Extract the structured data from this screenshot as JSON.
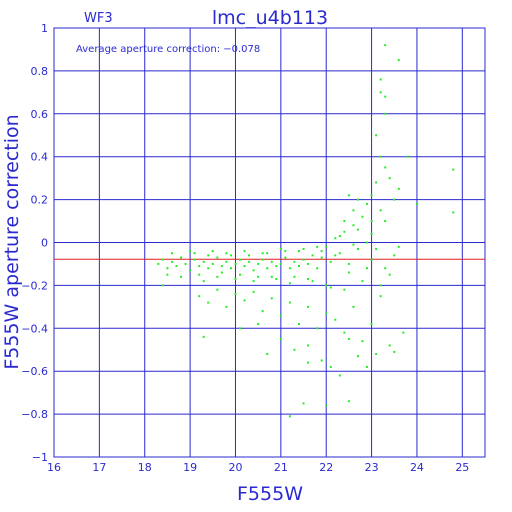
{
  "chart_data": {
    "type": "scatter",
    "title": "lmc_u4b113",
    "subtitle": "WF3",
    "xlabel": "F555W",
    "ylabel": "F555W aperture correction",
    "annotation": "Average aperture correction: −0.078",
    "xlim": [
      16,
      25.5
    ],
    "ylim": [
      -1,
      1
    ],
    "x_ticks": [
      "16",
      "17",
      "18",
      "19",
      "20",
      "21",
      "22",
      "23",
      "24",
      "25"
    ],
    "y_ticks": [
      "−1",
      "−0.8",
      "−0.6",
      "−0.4",
      "−0.2",
      "0",
      "0.2",
      "0.4",
      "0.6",
      "0.8",
      "1"
    ],
    "grid": true,
    "reference_line": {
      "y": -0.078,
      "color": "#e02020"
    },
    "colors": {
      "axes": "#2a2ad0",
      "points": "#22ee22",
      "reference": "#e02020"
    },
    "series": [
      {
        "points": [
          [
            18.3,
            -0.1
          ],
          [
            18.4,
            -0.08
          ],
          [
            18.5,
            -0.12
          ],
          [
            18.6,
            -0.09
          ],
          [
            18.7,
            -0.11
          ],
          [
            18.8,
            -0.07
          ],
          [
            18.9,
            -0.1
          ],
          [
            19.0,
            -0.13
          ],
          [
            19.1,
            -0.08
          ],
          [
            19.2,
            -0.11
          ],
          [
            19.3,
            -0.09
          ],
          [
            19.4,
            -0.12
          ],
          [
            19.5,
            -0.1
          ],
          [
            19.6,
            -0.07
          ],
          [
            19.7,
            -0.11
          ],
          [
            19.8,
            -0.09
          ],
          [
            19.9,
            -0.12
          ],
          [
            20.0,
            -0.1
          ],
          [
            20.1,
            -0.08
          ],
          [
            20.2,
            -0.11
          ],
          [
            20.3,
            -0.09
          ],
          [
            20.4,
            -0.13
          ],
          [
            20.5,
            -0.1
          ],
          [
            20.6,
            -0.08
          ],
          [
            20.7,
            -0.12
          ],
          [
            20.8,
            -0.09
          ],
          [
            20.9,
            -0.11
          ],
          [
            21.0,
            -0.1
          ],
          [
            21.1,
            -0.07
          ],
          [
            21.2,
            -0.12
          ],
          [
            21.3,
            -0.09
          ],
          [
            21.4,
            -0.11
          ],
          [
            21.5,
            -0.08
          ],
          [
            21.6,
            -0.1
          ],
          [
            21.7,
            -0.06
          ],
          [
            21.8,
            -0.12
          ],
          [
            21.9,
            -0.04
          ],
          [
            22.0,
            -0.02
          ],
          [
            22.1,
            -0.09
          ],
          [
            22.2,
            0.02
          ],
          [
            22.3,
            -0.05
          ],
          [
            22.4,
            0.05
          ],
          [
            22.5,
            -0.1
          ],
          [
            22.6,
            0.08
          ],
          [
            22.7,
            -0.03
          ],
          [
            22.8,
            0.12
          ],
          [
            22.9,
            0.0
          ],
          [
            23.0,
            0.1
          ],
          [
            19.1,
            -0.05
          ],
          [
            19.2,
            -0.15
          ],
          [
            19.3,
            -0.18
          ],
          [
            19.5,
            -0.04
          ],
          [
            19.6,
            -0.16
          ],
          [
            19.8,
            -0.05
          ],
          [
            20.0,
            -0.17
          ],
          [
            20.2,
            -0.04
          ],
          [
            20.4,
            -0.18
          ],
          [
            20.6,
            -0.05
          ],
          [
            20.8,
            -0.16
          ],
          [
            21.0,
            -0.03
          ],
          [
            21.2,
            -0.19
          ],
          [
            21.4,
            -0.04
          ],
          [
            21.6,
            -0.17
          ],
          [
            21.8,
            -0.02
          ],
          [
            22.0,
            -0.2
          ],
          [
            22.2,
            -0.06
          ],
          [
            22.4,
            -0.22
          ],
          [
            22.6,
            -0.01
          ],
          [
            22.8,
            -0.18
          ],
          [
            23.0,
            0.04
          ],
          [
            18.4,
            -0.2
          ],
          [
            18.5,
            -0.15
          ],
          [
            18.6,
            -0.05
          ],
          [
            18.8,
            -0.16
          ],
          [
            19.0,
            -0.04
          ],
          [
            19.4,
            -0.06
          ],
          [
            19.7,
            -0.14
          ],
          [
            19.9,
            -0.06
          ],
          [
            20.1,
            -0.15
          ],
          [
            20.3,
            -0.06
          ],
          [
            20.5,
            -0.16
          ],
          [
            20.7,
            -0.05
          ],
          [
            20.9,
            -0.17
          ],
          [
            21.1,
            -0.04
          ],
          [
            21.3,
            -0.16
          ],
          [
            21.5,
            -0.03
          ],
          [
            21.7,
            -0.18
          ],
          [
            21.9,
            -0.07
          ],
          [
            22.1,
            -0.21
          ],
          [
            22.3,
            0.03
          ],
          [
            22.5,
            -0.14
          ],
          [
            22.7,
            0.06
          ],
          [
            22.9,
            -0.12
          ],
          [
            19.2,
            -0.25
          ],
          [
            19.4,
            -0.28
          ],
          [
            19.6,
            -0.22
          ],
          [
            19.8,
            -0.3
          ],
          [
            20.0,
            -0.24
          ],
          [
            20.2,
            -0.27
          ],
          [
            20.4,
            -0.23
          ],
          [
            20.6,
            -0.32
          ],
          [
            20.8,
            -0.26
          ],
          [
            21.0,
            -0.34
          ],
          [
            21.2,
            -0.28
          ],
          [
            21.4,
            -0.38
          ],
          [
            21.6,
            -0.3
          ],
          [
            21.8,
            -0.4
          ],
          [
            22.0,
            -0.33
          ],
          [
            22.2,
            -0.36
          ],
          [
            22.4,
            -0.42
          ],
          [
            22.6,
            -0.3
          ],
          [
            22.8,
            -0.46
          ],
          [
            23.0,
            -0.38
          ],
          [
            23.2,
            -0.25
          ],
          [
            23.4,
            -0.48
          ],
          [
            19.3,
            -0.44
          ],
          [
            20.1,
            -0.4
          ],
          [
            20.5,
            -0.38
          ],
          [
            20.7,
            -0.52
          ],
          [
            21.0,
            -0.45
          ],
          [
            21.3,
            -0.5
          ],
          [
            21.6,
            -0.48
          ],
          [
            21.9,
            -0.55
          ],
          [
            22.1,
            -0.58
          ],
          [
            22.3,
            -0.62
          ],
          [
            22.5,
            -0.45
          ],
          [
            22.7,
            -0.53
          ],
          [
            22.9,
            -0.58
          ],
          [
            23.1,
            -0.52
          ],
          [
            23.5,
            -0.51
          ],
          [
            23.7,
            -0.42
          ],
          [
            21.6,
            -0.56
          ],
          [
            22.0,
            -0.76
          ],
          [
            22.5,
            -0.74
          ],
          [
            21.2,
            -0.81
          ],
          [
            21.5,
            -0.75
          ],
          [
            22.6,
            0.15
          ],
          [
            22.7,
            0.2
          ],
          [
            22.9,
            0.18
          ],
          [
            23.0,
            0.22
          ],
          [
            23.2,
            0.15
          ],
          [
            23.3,
            0.1
          ],
          [
            22.4,
            0.1
          ],
          [
            22.5,
            0.22
          ],
          [
            23.1,
            0.28
          ],
          [
            23.2,
            0.4
          ],
          [
            23.3,
            0.35
          ],
          [
            23.1,
            0.5
          ],
          [
            23.3,
            0.6
          ],
          [
            23.2,
            0.7
          ],
          [
            23.3,
            0.68
          ],
          [
            23.2,
            0.76
          ],
          [
            23.3,
            0.92
          ],
          [
            23.6,
            0.85
          ],
          [
            23.4,
            0.3
          ],
          [
            23.5,
            0.2
          ],
          [
            23.6,
            0.25
          ],
          [
            23.8,
            0.4
          ],
          [
            24.0,
            0.18
          ],
          [
            24.8,
            0.34
          ],
          [
            24.8,
            0.14
          ],
          [
            23.0,
            -0.08
          ],
          [
            23.1,
            -0.03
          ],
          [
            23.3,
            -0.12
          ],
          [
            23.5,
            -0.06
          ],
          [
            23.6,
            -0.02
          ],
          [
            23.4,
            -0.15
          ],
          [
            23.2,
            -0.2
          ]
        ]
      }
    ]
  }
}
